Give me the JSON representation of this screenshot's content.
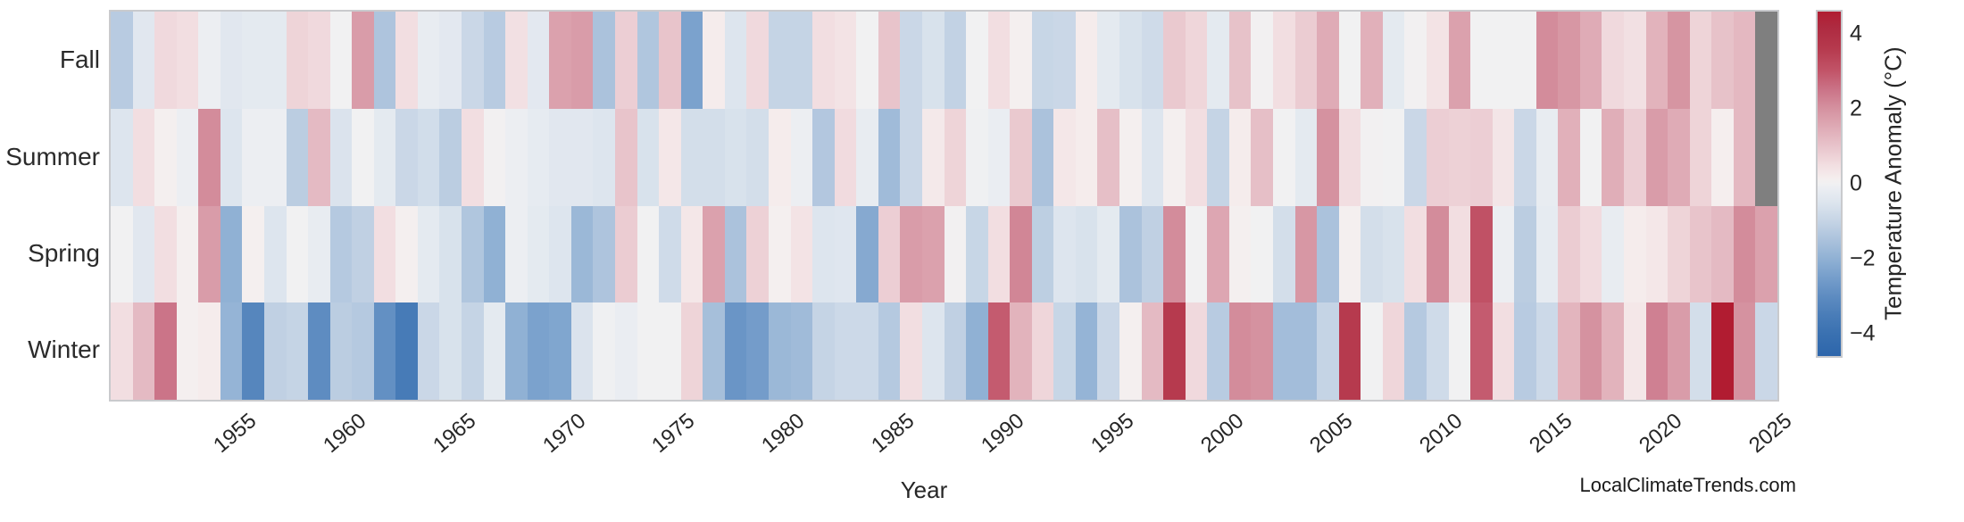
{
  "watermark": "LocalClimateTrends.com",
  "chart_data": {
    "type": "heatmap",
    "xlabel": "Year",
    "x_start_year": 1950,
    "x_end_year": 2025,
    "seasons": [
      "Fall",
      "Summer",
      "Spring",
      "Winter"
    ],
    "x_tick_years": [
      1955,
      1960,
      1965,
      1970,
      1975,
      1980,
      1985,
      1990,
      1995,
      2000,
      2005,
      2010,
      2015,
      2020,
      2025
    ],
    "x_tick_labels": [
      "1955",
      "1960",
      "1965",
      "1970",
      "1975",
      "1980",
      "1985",
      "1990",
      "1995",
      "2000",
      "2005",
      "2010",
      "2015",
      "2020",
      "2025"
    ],
    "colorbar": {
      "label": "Temperature Anomaly (°C)",
      "tick_values": [
        4,
        2,
        0,
        -2,
        -4
      ],
      "tick_labels": [
        "4",
        "2",
        "0",
        "−2",
        "−4"
      ],
      "vmin": -4.6,
      "vmax": 4.6
    },
    "missing_color": "#7f7f7f",
    "frame_color": "#c9cacd",
    "colormap_stops": [
      [
        -4.6,
        "#2d66ab"
      ],
      [
        -4.0,
        "#3a71b1"
      ],
      [
        -3.5,
        "#4a7db8"
      ],
      [
        -3.0,
        "#5e8cc1"
      ],
      [
        -2.5,
        "#769ecb"
      ],
      [
        -2.0,
        "#90b1d4"
      ],
      [
        -1.5,
        "#abc2dc"
      ],
      [
        -1.0,
        "#c5d4e5"
      ],
      [
        -0.5,
        "#dde5ee"
      ],
      [
        -0.15,
        "#eaedf2"
      ],
      [
        0.0,
        "#f1f1f2"
      ],
      [
        0.15,
        "#f5eeee"
      ],
      [
        0.5,
        "#f2dee1"
      ],
      [
        1.0,
        "#e8c4cb"
      ],
      [
        1.5,
        "#dfabb6"
      ],
      [
        2.0,
        "#d592a0"
      ],
      [
        2.5,
        "#cb7488"
      ],
      [
        3.0,
        "#c25569"
      ],
      [
        3.6,
        "#b63a4e"
      ],
      [
        4.2,
        "#ae2a40"
      ],
      [
        4.6,
        "#b11c31"
      ]
    ],
    "series": [
      {
        "name": "Fall",
        "values": [
          -1.25,
          -0.4,
          0.6,
          0.5,
          -0.1,
          -0.4,
          -0.3,
          -0.3,
          0.7,
          0.6,
          0.0,
          1.8,
          -1.45,
          0.5,
          -0.2,
          -0.35,
          -0.9,
          -1.25,
          0.45,
          -0.35,
          1.7,
          1.8,
          -1.5,
          0.8,
          -1.4,
          1.0,
          -2.4,
          0.2,
          -0.5,
          0.6,
          -1.0,
          -1.0,
          0.5,
          0.4,
          0.0,
          1.0,
          -0.9,
          -0.6,
          -1.05,
          0.0,
          0.5,
          0.1,
          -0.95,
          -0.9,
          0.2,
          -0.3,
          -0.6,
          -0.8,
          0.9,
          0.65,
          -0.3,
          1.05,
          0.05,
          0.5,
          0.85,
          1.5,
          0.0,
          1.4,
          -0.3,
          0.05,
          0.4,
          1.7,
          0.0,
          0.0,
          0.0,
          2.1,
          1.9,
          1.5,
          0.6,
          0.45,
          1.35,
          1.95,
          0.7,
          1.05,
          1.25,
          null
        ]
      },
      {
        "name": "Summer",
        "values": [
          -0.5,
          0.5,
          0.1,
          -0.1,
          2.1,
          -0.5,
          -0.1,
          -0.1,
          -1.2,
          1.2,
          -0.55,
          0.0,
          -0.3,
          -0.9,
          -0.75,
          -1.2,
          0.5,
          0.05,
          -0.1,
          -0.25,
          -0.4,
          -0.4,
          -0.5,
          1.0,
          -0.6,
          0.3,
          -0.7,
          -0.7,
          -0.6,
          -0.7,
          0.2,
          -0.1,
          -1.35,
          0.55,
          -0.2,
          -1.7,
          -0.9,
          0.25,
          0.7,
          -0.05,
          -0.15,
          0.9,
          -1.5,
          0.3,
          0.2,
          1.1,
          0.1,
          -0.5,
          0.1,
          0.5,
          -1.0,
          0.2,
          1.1,
          0.0,
          -0.3,
          2.0,
          0.5,
          0.05,
          0.0,
          -0.9,
          0.8,
          0.75,
          0.8,
          0.35,
          -0.9,
          -0.2,
          1.4,
          0.0,
          1.45,
          0.8,
          1.8,
          1.5,
          0.7,
          0.15,
          1.25,
          null
        ]
      },
      {
        "name": "Spring",
        "values": [
          0.0,
          -0.4,
          0.5,
          0.1,
          1.8,
          -2.0,
          0.1,
          -0.5,
          0.0,
          -0.2,
          -1.3,
          -1.1,
          0.5,
          0.1,
          -0.3,
          -0.6,
          -1.4,
          -2.0,
          -0.1,
          -0.3,
          -0.5,
          -1.8,
          -1.45,
          0.85,
          0.0,
          -0.8,
          0.3,
          1.7,
          -1.5,
          0.75,
          0.1,
          0.4,
          -0.5,
          -0.45,
          -2.2,
          0.8,
          1.8,
          1.7,
          0.05,
          -0.95,
          0.5,
          2.2,
          -1.15,
          -0.5,
          -0.6,
          -0.3,
          -1.5,
          -1.1,
          2.1,
          0.0,
          1.6,
          0.1,
          0.0,
          -0.7,
          1.9,
          -1.5,
          0.1,
          -0.7,
          -0.6,
          0.5,
          2.1,
          0.5,
          3.1,
          -0.1,
          -1.2,
          -0.25,
          0.85,
          0.55,
          -0.2,
          0.2,
          0.3,
          0.7,
          1.0,
          1.2,
          2.1,
          1.7
        ]
      },
      {
        "name": "Winter",
        "values": [
          0.5,
          1.2,
          2.5,
          0.1,
          0.2,
          -1.9,
          -3.2,
          -1.1,
          -1.0,
          -3.0,
          -1.2,
          -1.3,
          -2.9,
          -3.6,
          -0.9,
          -0.6,
          -1.0,
          -0.3,
          -2.0,
          -2.4,
          -2.3,
          -0.55,
          -0.05,
          -0.15,
          0.0,
          0.0,
          0.7,
          -1.6,
          -2.75,
          -2.55,
          -1.8,
          -1.7,
          -1.0,
          -0.85,
          -0.85,
          -1.3,
          0.5,
          -0.5,
          -1.1,
          -2.0,
          2.9,
          1.35,
          0.65,
          -0.95,
          -1.9,
          -0.9,
          0.1,
          1.2,
          3.6,
          0.6,
          -1.25,
          2.1,
          2.0,
          -1.65,
          -1.65,
          -1.0,
          3.6,
          0.0,
          0.65,
          -1.3,
          -0.8,
          0.0,
          2.9,
          0.5,
          -1.25,
          -0.85,
          1.3,
          2.0,
          1.35,
          0.3,
          2.3,
          1.8,
          -0.7,
          4.6,
          2.0,
          -0.9
        ]
      }
    ]
  }
}
